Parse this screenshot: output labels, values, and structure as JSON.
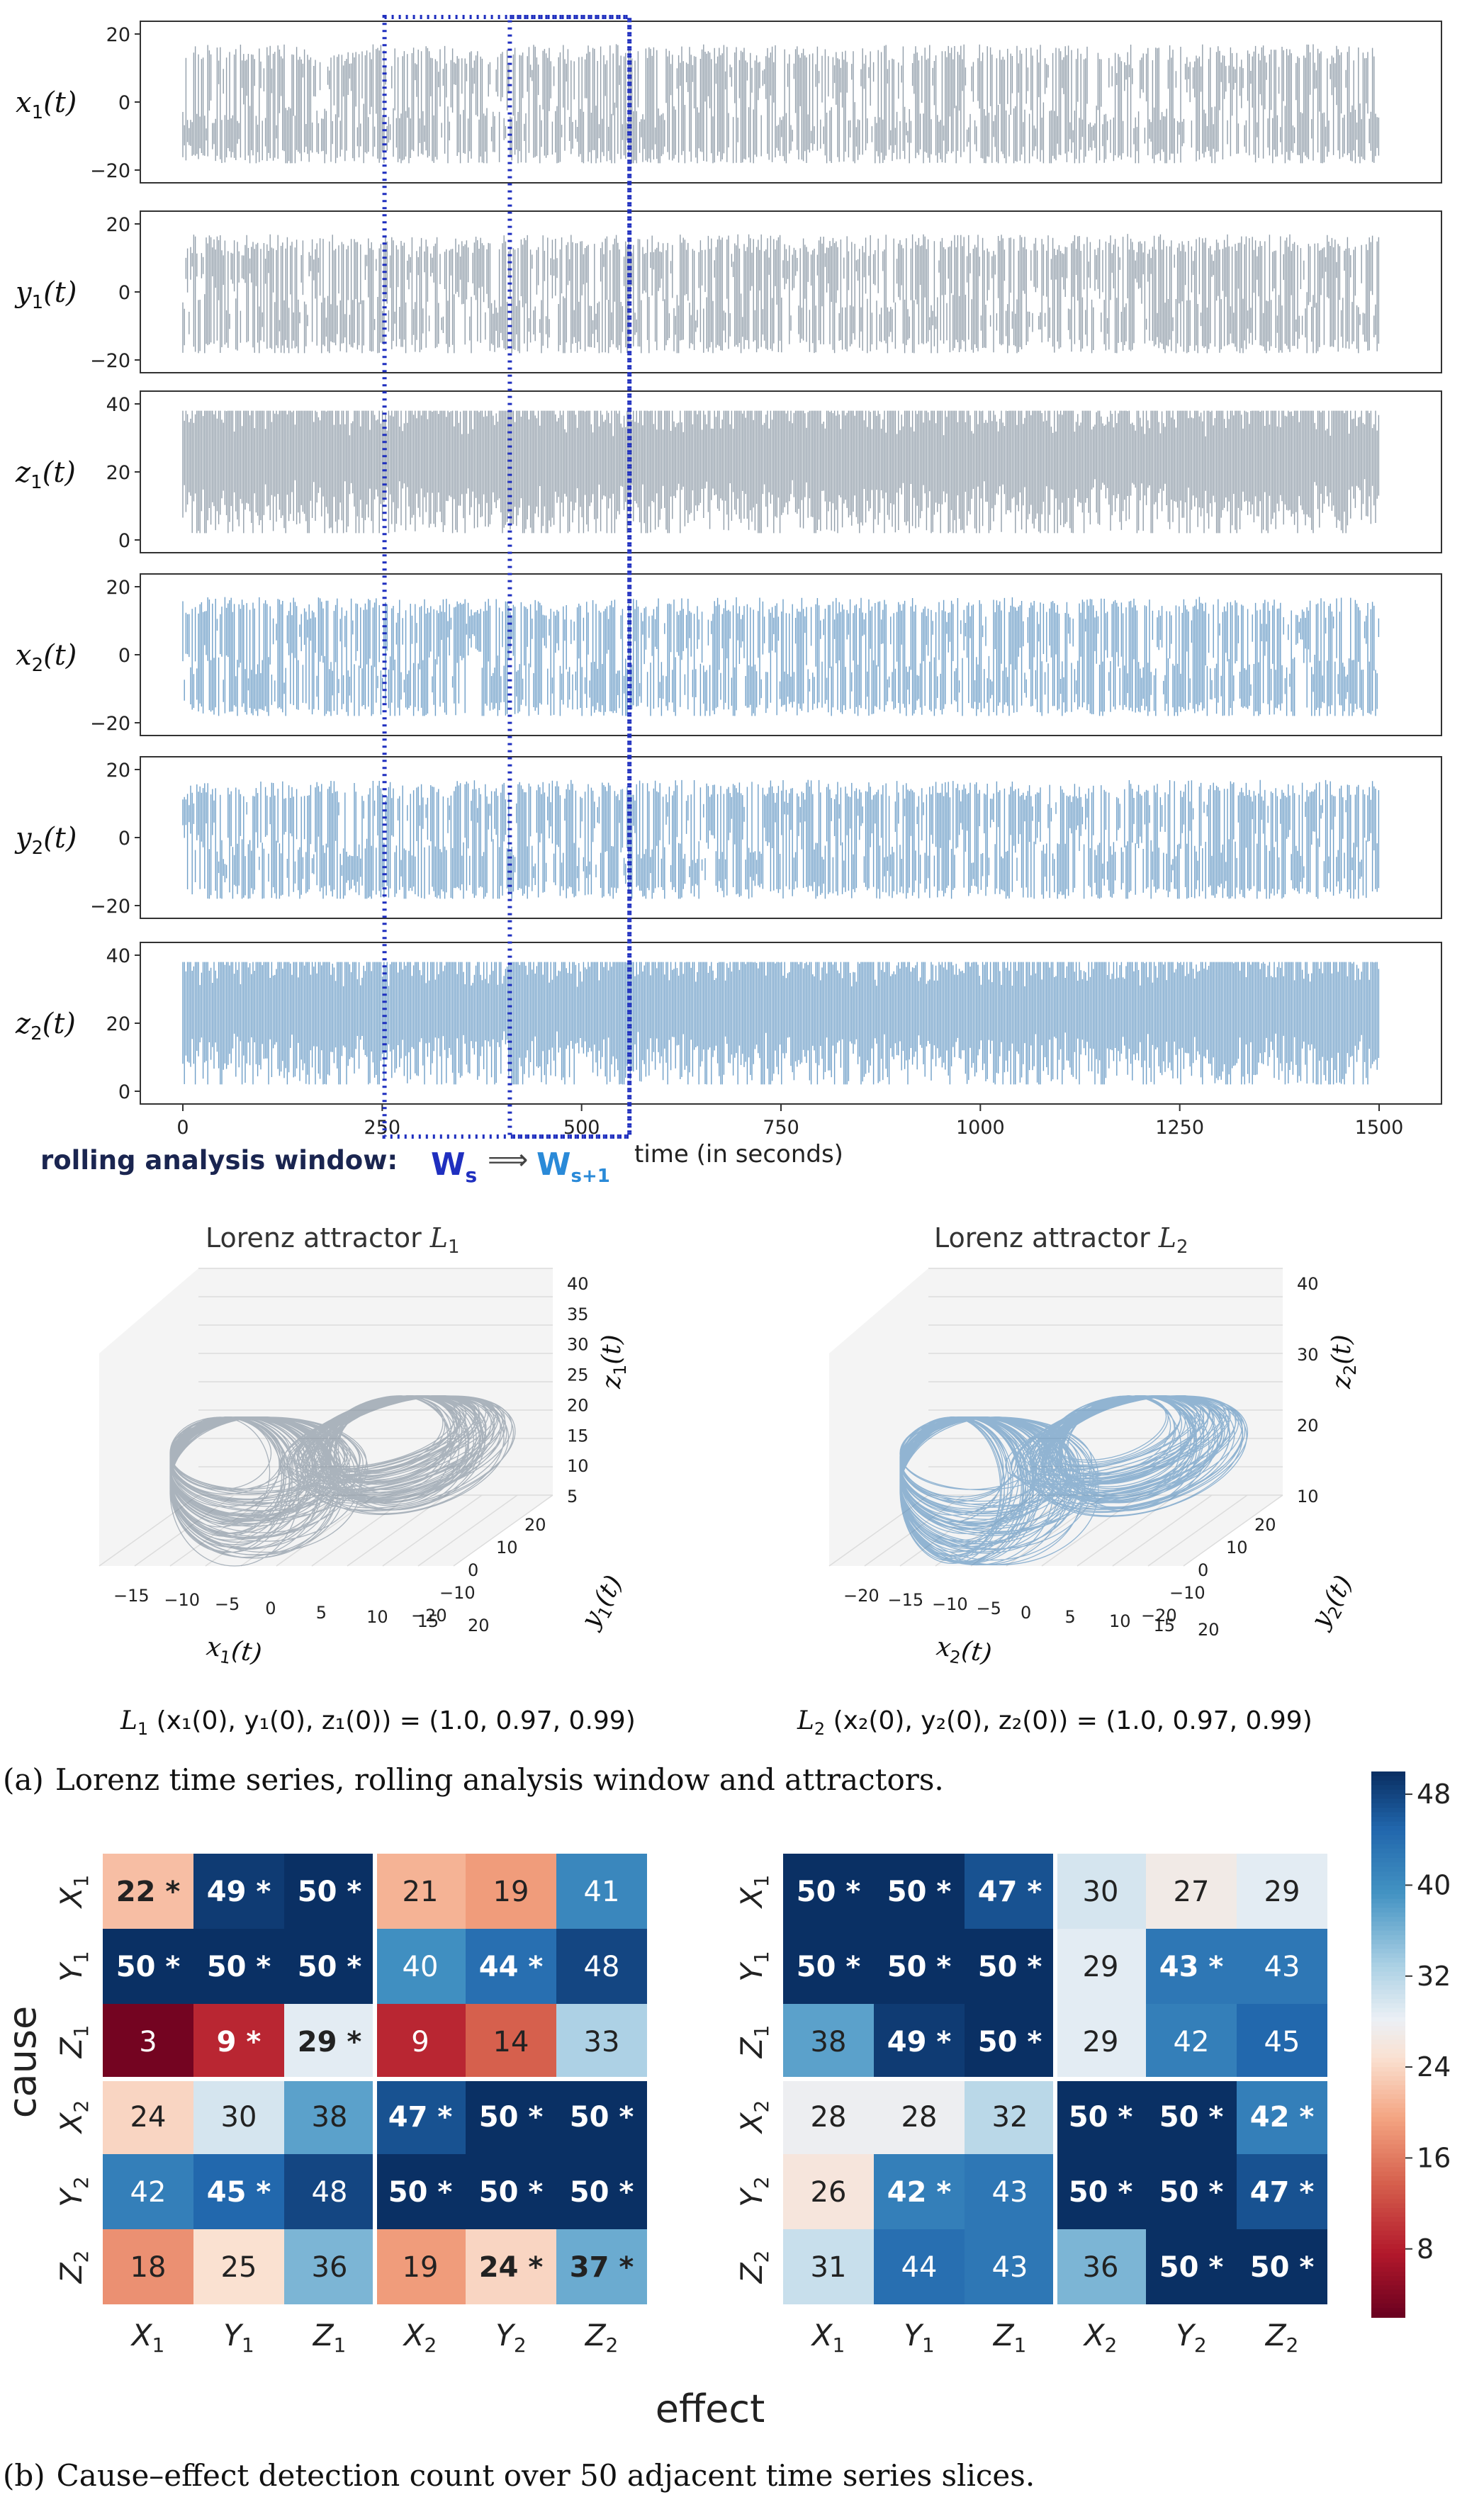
{
  "colors": {
    "l1_series": "#6e7e8e",
    "l2_series": "#3f7fb6",
    "window_box": "#1f2fbf",
    "ws_label": "#1f2fbf",
    "ws1_label": "#2a8ad8",
    "rolling_label": "#1a2550"
  },
  "panel_a": {
    "time_axis": {
      "label": "time (in seconds)",
      "ticks": [
        "0",
        "250",
        "500",
        "750",
        "1000",
        "1250",
        "1500"
      ],
      "range": [
        0,
        1500
      ]
    },
    "rolling": {
      "label": "rolling analysis window:",
      "ws": "W",
      "ws_sub": "s",
      "arrow": "⟹",
      "ws1": "W",
      "ws1_sub": "s+1",
      "windows_time": [
        [
          260,
          560
        ],
        [
          410,
          560
        ]
      ]
    },
    "series": [
      {
        "var": "x",
        "sub": "1",
        "tail": "(t)",
        "ticks": [
          "20",
          "0",
          "−20"
        ],
        "range": [
          -20,
          20
        ],
        "system": "L1"
      },
      {
        "var": "y",
        "sub": "1",
        "tail": "(t)",
        "ticks": [
          "20",
          "0",
          "−20"
        ],
        "range": [
          -20,
          20
        ],
        "system": "L1"
      },
      {
        "var": "z",
        "sub": "1",
        "tail": "(t)",
        "ticks": [
          "40",
          "20",
          "0"
        ],
        "range": [
          0,
          40
        ],
        "system": "L1"
      },
      {
        "var": "x",
        "sub": "2",
        "tail": "(t)",
        "ticks": [
          "20",
          "0",
          "−20"
        ],
        "range": [
          -20,
          20
        ],
        "system": "L2"
      },
      {
        "var": "y",
        "sub": "2",
        "tail": "(t)",
        "ticks": [
          "20",
          "0",
          "−20"
        ],
        "range": [
          -20,
          20
        ],
        "system": "L2"
      },
      {
        "var": "z",
        "sub": "2",
        "tail": "(t)",
        "ticks": [
          "40",
          "20",
          "0"
        ],
        "range": [
          0,
          40
        ],
        "system": "L2"
      }
    ],
    "attractors": [
      {
        "title": "Lorenz attractor ",
        "title_var": "L",
        "title_sub": "1",
        "x_ticks": [
          "−15",
          "−10",
          "−5",
          "0",
          "5",
          "10",
          "15",
          "20"
        ],
        "y_ticks": [
          "20",
          "10",
          "0",
          "−10",
          "−20"
        ],
        "z_ticks": [
          "40",
          "35",
          "30",
          "25",
          "20",
          "15",
          "10",
          "5"
        ],
        "xlabel": "x",
        "xlabel_sub": "1",
        "xlabel_tail": "(t)",
        "ylabel": "y",
        "ylabel_sub": "1",
        "ylabel_tail": "(t)",
        "zlabel": "z",
        "zlabel_sub": "1",
        "zlabel_tail": "(t)",
        "ic_label_var": "L",
        "ic_label_sub": "1",
        "ic_text": " (x₁(0), y₁(0), z₁(0)) = (1.0, 0.97, 0.99)"
      },
      {
        "title": "Lorenz attractor ",
        "title_var": "L",
        "title_sub": "2",
        "x_ticks": [
          "−20",
          "−15",
          "−10",
          "−5",
          "0",
          "5",
          "10",
          "15",
          "20"
        ],
        "y_ticks": [
          "20",
          "10",
          "0",
          "−10",
          "−20"
        ],
        "z_ticks": [
          "40",
          "30",
          "20",
          "10"
        ],
        "xlabel": "x",
        "xlabel_sub": "2",
        "xlabel_tail": "(t)",
        "ylabel": "y",
        "ylabel_sub": "2",
        "ylabel_tail": "(t)",
        "zlabel": "z",
        "zlabel_sub": "2",
        "zlabel_tail": "(t)",
        "ic_label_var": "L",
        "ic_label_sub": "2",
        "ic_text": " (x₂(0), y₂(0), z₂(0)) = (1.0, 0.97, 0.99)"
      }
    ],
    "caption_label": "(a)",
    "caption_text": "Lorenz time series, rolling analysis window and attractors."
  },
  "chart_data": [
    {
      "type": "heatmap",
      "title": "",
      "xlabel": "effect",
      "ylabel": "cause",
      "rows": [
        "X1",
        "Y1",
        "Z1",
        "X2",
        "Y2",
        "Z2"
      ],
      "cols": [
        "X1",
        "Y1",
        "Z1",
        "X2",
        "Y2",
        "Z2"
      ],
      "values": [
        [
          22,
          49,
          50,
          21,
          19,
          41
        ],
        [
          50,
          50,
          50,
          40,
          44,
          48
        ],
        [
          3,
          9,
          29,
          9,
          14,
          33
        ],
        [
          24,
          30,
          38,
          47,
          50,
          50
        ],
        [
          42,
          45,
          48,
          50,
          50,
          50
        ],
        [
          18,
          25,
          36,
          19,
          24,
          37
        ]
      ],
      "significant": [
        [
          true,
          true,
          true,
          false,
          false,
          false
        ],
        [
          true,
          true,
          true,
          false,
          true,
          false
        ],
        [
          false,
          true,
          true,
          false,
          false,
          false
        ],
        [
          false,
          false,
          false,
          true,
          true,
          true
        ],
        [
          false,
          true,
          false,
          true,
          true,
          true
        ],
        [
          false,
          false,
          false,
          false,
          true,
          true
        ]
      ]
    },
    {
      "type": "heatmap",
      "title": "",
      "xlabel": "effect",
      "ylabel": "cause",
      "rows": [
        "X1",
        "Y1",
        "Z1",
        "X2",
        "Y2",
        "Z2"
      ],
      "cols": [
        "X1",
        "Y1",
        "Z1",
        "X2",
        "Y2",
        "Z2"
      ],
      "values": [
        [
          50,
          50,
          47,
          30,
          27,
          29
        ],
        [
          50,
          50,
          50,
          29,
          43,
          43
        ],
        [
          38,
          49,
          50,
          29,
          42,
          45
        ],
        [
          28,
          28,
          32,
          50,
          50,
          42
        ],
        [
          26,
          42,
          43,
          50,
          50,
          47
        ],
        [
          31,
          44,
          43,
          36,
          50,
          50
        ]
      ],
      "significant": [
        [
          true,
          true,
          true,
          false,
          false,
          false
        ],
        [
          true,
          true,
          true,
          false,
          true,
          false
        ],
        [
          false,
          true,
          true,
          false,
          false,
          false
        ],
        [
          false,
          false,
          false,
          true,
          true,
          true
        ],
        [
          false,
          true,
          false,
          true,
          true,
          true
        ],
        [
          false,
          false,
          false,
          false,
          true,
          true
        ]
      ],
      "colorbar": {
        "range": [
          2,
          50
        ],
        "ticks": [
          48,
          40,
          32,
          24,
          16,
          8
        ],
        "colormap": "RdBu"
      }
    }
  ],
  "panel_b": {
    "caption_label": "(b)",
    "caption_text": "Cause–effect detection count over 50 adjacent time series slices.",
    "star": "*"
  }
}
